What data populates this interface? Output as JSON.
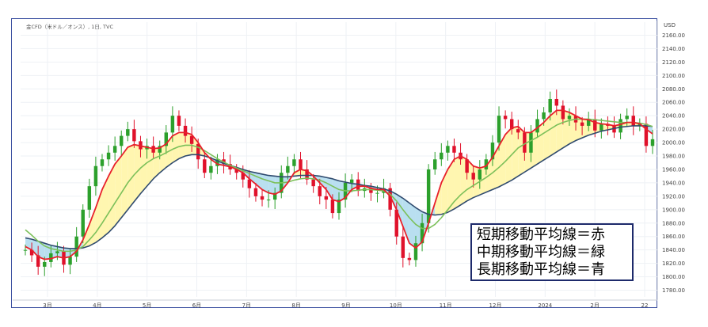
{
  "header": {
    "title": "金CFD（米ドル／オンス）, 1日, TVC"
  },
  "legend": {
    "lines": [
      "短期移動平均線＝赤",
      "中期移動平均線＝緑",
      "長期移動平均線＝青"
    ]
  },
  "colors": {
    "candle_up": "#2ca02c",
    "candle_down": "#e0112b",
    "short_ma": "#e8202a",
    "mid_ma": "#7cc05a",
    "long_ma": "#2f4a6e",
    "fill_yellow": "#fff6b0",
    "fill_blue": "#b9dff0",
    "grid": "#eef1f5",
    "frame": "#3b4fa0"
  },
  "chart_data": {
    "type": "line",
    "title": "金CFD（米ドル／オンス）, 1日, TVC",
    "xlabel": "",
    "ylabel": "",
    "y_axis_unit": "USD",
    "ylim": [
      1770,
      2170
    ],
    "y_ticks": [
      1780,
      1800,
      1820,
      1840,
      1860,
      1880,
      1900,
      1920,
      1940,
      1960,
      1980,
      2000,
      2020,
      2040,
      2060,
      2080,
      2100,
      2120,
      2140,
      2160
    ],
    "x_ticks": [
      "3月",
      "4月",
      "5月",
      "6月",
      "7月",
      "8月",
      "9月",
      "10月",
      "11月",
      "12月",
      "2024",
      "2月",
      "22"
    ],
    "grid": true,
    "series": [
      {
        "name": "",
        "key": "price",
        "values": [
          1840,
          1832,
          1815,
          1822,
          1835,
          1838,
          1818,
          1830,
          1860,
          1900,
          1935,
          1965,
          1975,
          1985,
          1995,
          2010,
          2020,
          2002,
          1990,
          1995,
          1985,
          1995,
          2015,
          2040,
          2025,
          2010,
          1998,
          1975,
          1955,
          1965,
          1975,
          1968,
          1960,
          1955,
          1945,
          1932,
          1920,
          1915,
          1915,
          1925,
          1955,
          1965,
          1975,
          1960,
          1945,
          1935,
          1920,
          1915,
          1895,
          1915,
          1940,
          1945,
          1928,
          1932,
          1925,
          1925,
          1932,
          1900,
          1860,
          1828,
          1825,
          1850,
          1880,
          1960,
          1975,
          1985,
          1995,
          1985,
          1975,
          1955,
          1945,
          1960,
          1975,
          2000,
          2040,
          2035,
          2020,
          2015,
          1985,
          2015,
          2035,
          2045,
          2065,
          2055,
          2035,
          2040,
          2030,
          2025,
          2035,
          2018,
          2028,
          2025,
          2015,
          2035,
          2040,
          2025,
          2028,
          1995,
          2005
        ]
      },
      {
        "name": "短期移動平均線",
        "key": "short",
        "values": [
          1845,
          1840,
          1830,
          1826,
          1827,
          1830,
          1828,
          1830,
          1838,
          1855,
          1878,
          1903,
          1930,
          1950,
          1968,
          1980,
          1993,
          1997,
          1995,
          1993,
          1991,
          1992,
          1998,
          2010,
          2015,
          2015,
          2012,
          2000,
          1985,
          1975,
          1968,
          1966,
          1964,
          1960,
          1955,
          1946,
          1938,
          1930,
          1925,
          1923,
          1928,
          1940,
          1955,
          1960,
          1958,
          1950,
          1940,
          1930,
          1915,
          1912,
          1918,
          1930,
          1935,
          1935,
          1932,
          1930,
          1930,
          1920,
          1900,
          1875,
          1850,
          1843,
          1852,
          1880,
          1910,
          1940,
          1960,
          1975,
          1980,
          1975,
          1965,
          1962,
          1965,
          1978,
          1995,
          2012,
          2022,
          2024,
          2015,
          2015,
          2022,
          2030,
          2040,
          2048,
          2048,
          2045,
          2040,
          2035,
          2034,
          2030,
          2028,
          2027,
          2025,
          2027,
          2030,
          2030,
          2028,
          2020,
          2013
        ]
      },
      {
        "name": "中期移動平均線",
        "key": "mid",
        "values": [
          1870,
          1862,
          1853,
          1846,
          1842,
          1840,
          1838,
          1838,
          1840,
          1845,
          1855,
          1866,
          1880,
          1895,
          1910,
          1925,
          1940,
          1952,
          1962,
          1970,
          1976,
          1980,
          1985,
          1990,
          1994,
          1996,
          1996,
          1993,
          1988,
          1982,
          1976,
          1971,
          1966,
          1962,
          1958,
          1954,
          1950,
          1946,
          1943,
          1940,
          1940,
          1941,
          1944,
          1946,
          1947,
          1946,
          1944,
          1940,
          1935,
          1930,
          1928,
          1928,
          1929,
          1930,
          1930,
          1929,
          1928,
          1923,
          1913,
          1900,
          1888,
          1878,
          1872,
          1872,
          1878,
          1888,
          1900,
          1912,
          1922,
          1930,
          1936,
          1942,
          1948,
          1955,
          1963,
          1972,
          1982,
          1992,
          1998,
          2003,
          2008,
          2014,
          2020,
          2026,
          2030,
          2033,
          2035,
          2035,
          2035,
          2034,
          2033,
          2032,
          2031,
          2030,
          2030,
          2030,
          2029,
          2027,
          2024
        ]
      },
      {
        "name": "長期移動平均線",
        "key": "long",
        "values": [
          1858,
          1856,
          1853,
          1850,
          1847,
          1845,
          1843,
          1842,
          1842,
          1843,
          1846,
          1851,
          1858,
          1866,
          1876,
          1888,
          1900,
          1912,
          1924,
          1935,
          1946,
          1955,
          1963,
          1970,
          1976,
          1980,
          1982,
          1982,
          1980,
          1977,
          1973,
          1969,
          1966,
          1963,
          1960,
          1957,
          1955,
          1953,
          1951,
          1950,
          1949,
          1949,
          1950,
          1951,
          1951,
          1951,
          1950,
          1948,
          1946,
          1943,
          1941,
          1939,
          1938,
          1936,
          1935,
          1933,
          1931,
          1928,
          1923,
          1917,
          1910,
          1903,
          1897,
          1893,
          1892,
          1893,
          1896,
          1901,
          1907,
          1913,
          1918,
          1922,
          1926,
          1930,
          1934,
          1939,
          1944,
          1950,
          1956,
          1962,
          1968,
          1974,
          1980,
          1986,
          1992,
          1998,
          2003,
          2007,
          2011,
          2014,
          2017,
          2019,
          2021,
          2023,
          2024,
          2025,
          2025,
          2025,
          2024
        ]
      }
    ],
    "annotations": [
      "短期移動平均線＝赤",
      "中期移動平均線＝緑",
      "長期移動平均線＝青"
    ]
  }
}
